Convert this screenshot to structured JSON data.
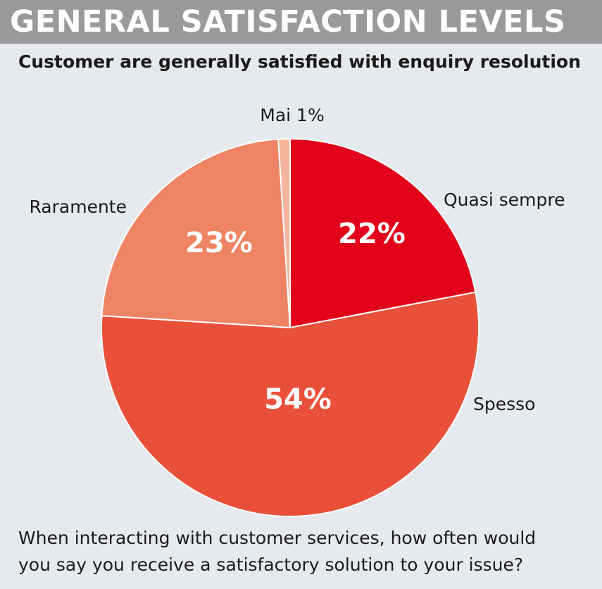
{
  "header": {
    "title": "GENERAL SATISFACTION LEVELS"
  },
  "subtitle": "Customer are generally satisfied with enquiry resolution",
  "caption": {
    "line1": "When interacting with customer services, how often would",
    "line2": "you say you receive a satisfactory solution to your issue?"
  },
  "chart_data": {
    "type": "pie",
    "title": "GENERAL SATISFACTION LEVELS",
    "subtitle": "Customer are generally satisfied with enquiry resolution",
    "slices": [
      {
        "label": "Quasi sempre",
        "value": 22,
        "display": "22%",
        "color": "#e2001a"
      },
      {
        "label": "Spesso",
        "value": 54,
        "display": "54%",
        "color": "#e8503a"
      },
      {
        "label": "Raramente",
        "value": 23,
        "display": "23%",
        "color": "#ee8464"
      },
      {
        "label": "Mai",
        "value": 1,
        "display": "Mai 1%",
        "color": "#f5b59c"
      }
    ],
    "start": "12 o'clock, clockwise",
    "legend": "none"
  }
}
